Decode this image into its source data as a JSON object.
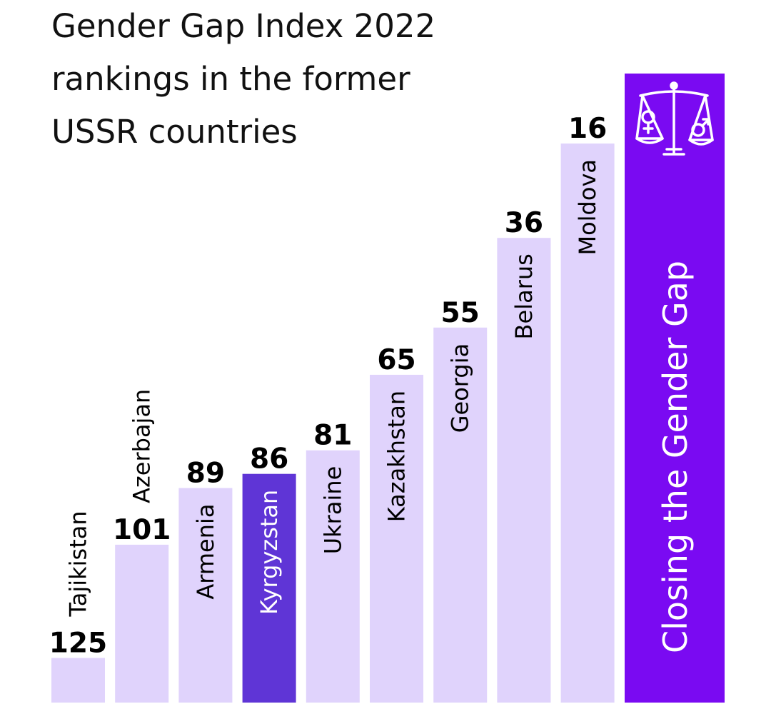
{
  "title_lines": [
    "Gender Gap Index 2022",
    "rankings in the former",
    "USSR countries"
  ],
  "side_panel": {
    "label": "Closing the Gender Gap",
    "icon": "gender-equality-scales-icon",
    "color": "#7A0AF2"
  },
  "colors": {
    "bar": "#E0D3FC",
    "highlight": "#5F35D6",
    "text": "#000000"
  },
  "chart_data": {
    "type": "bar",
    "title": "Gender Gap Index 2022 rankings in the former USSR countries",
    "xlabel": "",
    "ylabel": "",
    "categories": [
      "Tajikistan",
      "Azerbajan",
      "Armenia",
      "Kyrgyzstan",
      "Ukraine",
      "Kazakhstan",
      "Georgia",
      "Belarus",
      "Moldova"
    ],
    "values": [
      125,
      101,
      89,
      86,
      81,
      65,
      55,
      36,
      16
    ],
    "highlight": "Kyrgyzstan",
    "axis": "rank (lower is better), bar height inverse to rank",
    "grid": false,
    "legend": "none"
  }
}
